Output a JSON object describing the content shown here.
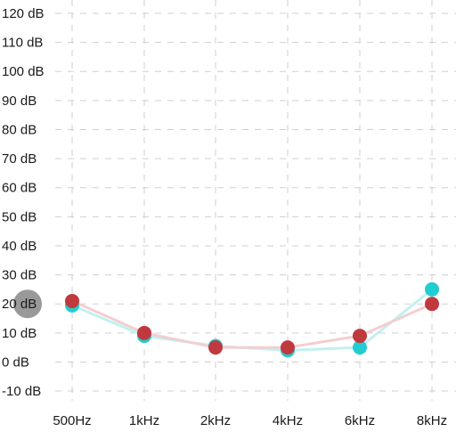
{
  "chart_data": {
    "type": "line",
    "categories": [
      "500Hz",
      "1kHz",
      "2kHz",
      "4kHz",
      "6kHz",
      "8kHz"
    ],
    "y_ticks": [
      120,
      110,
      100,
      90,
      80,
      70,
      60,
      50,
      40,
      30,
      20,
      10,
      0,
      -10
    ],
    "y_tick_labels": [
      "120 dB",
      "110 dB",
      "100 dB",
      "90 dB",
      "80 dB",
      "70 dB",
      "60 dB",
      "50 dB",
      "40 dB",
      "30 dB",
      "20 dB",
      "10 dB",
      "0 dB",
      "-10 dB"
    ],
    "ylim": [
      -10,
      120
    ],
    "grid": true,
    "series": [
      {
        "color": "#22cdd1",
        "line_color": "#c2f0f1",
        "values": [
          19.5,
          9,
          5.5,
          4,
          5,
          25
        ]
      },
      {
        "color": "#c0393e",
        "line_color": "#f2cfd0",
        "values": [
          21,
          10,
          5,
          5,
          9,
          20
        ]
      }
    ],
    "cursor": {
      "color": "#999999",
      "category_index": 0,
      "value": 20
    }
  }
}
